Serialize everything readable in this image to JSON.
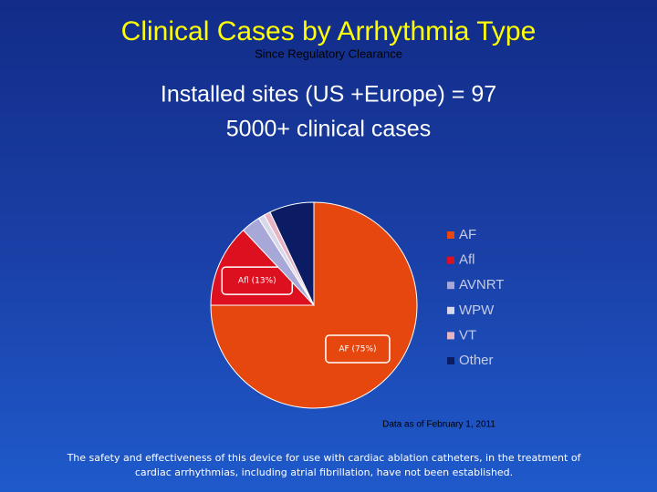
{
  "chart_data": {
    "type": "pie",
    "title": "Clinical Cases by Arrhythmia Type",
    "subtitle": "Since Regulatory Clearance",
    "categories": [
      "AF",
      "Afl",
      "AVNRT",
      "WPW",
      "VT",
      "Other"
    ],
    "values": [
      75,
      13,
      3,
      1,
      1,
      7
    ],
    "value_labels": [
      "AF (75%)",
      "Afl (13%)",
      null,
      null,
      null,
      null
    ],
    "colors": [
      "#e5470f",
      "#dd1020",
      "#a8a8d8",
      "#d8d8ea",
      "#e8b4c4",
      "#0c1c64"
    ],
    "note": "Data as of  February 1, 2011"
  },
  "slide": {
    "headline": [
      "Installed sites (US +Europe) = 97",
      "5000+ clinical cases"
    ],
    "footer": [
      "The safety and effectiveness of this device for use with cardiac ablation catheters, in the treatment of",
      "cardiac arrhythmias, including atrial fibrillation, have not been established."
    ]
  }
}
